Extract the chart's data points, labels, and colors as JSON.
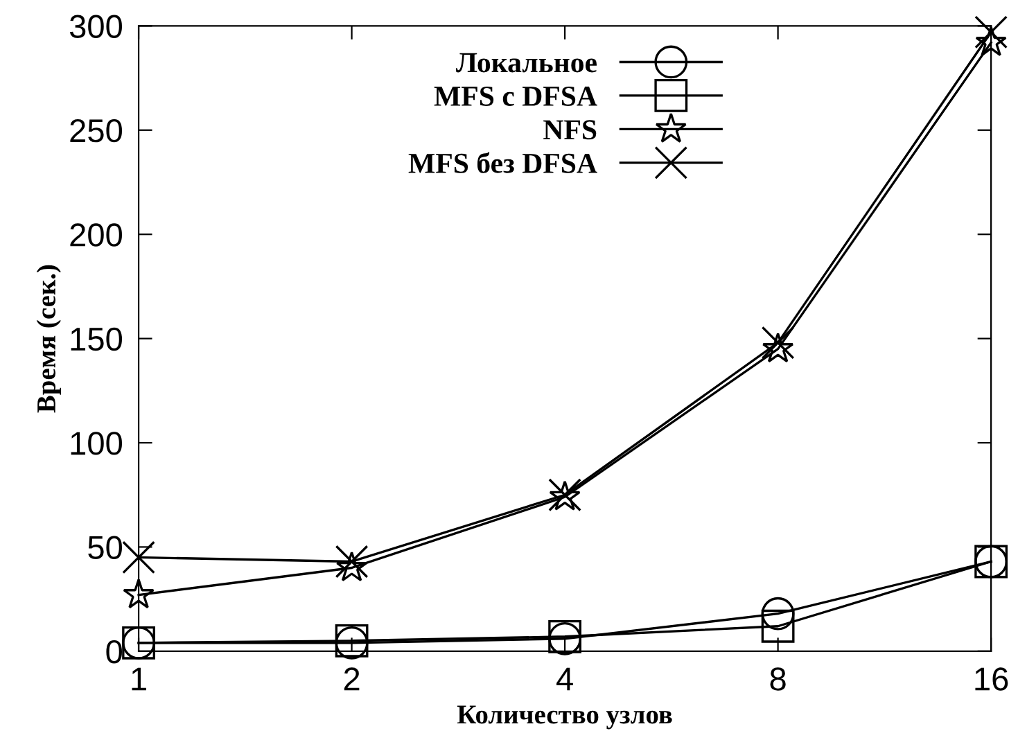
{
  "chart_data": {
    "type": "line",
    "xlabel": "Количество узлов",
    "ylabel": "Время (сек.)",
    "categories": [
      "1",
      "2",
      "4",
      "8",
      "16"
    ],
    "series": [
      {
        "name": "Локальное",
        "color": "#000000",
        "marker": "circle",
        "values": [
          4,
          4,
          6,
          18,
          43
        ]
      },
      {
        "name": "MFS с DFSA",
        "color": "#000000",
        "marker": "square",
        "values": [
          4,
          5,
          7,
          12,
          43
        ]
      },
      {
        "name": "NFS",
        "color": "#000000",
        "marker": "star",
        "values": [
          27,
          40,
          74,
          145,
          292
        ]
      },
      {
        "name": "MFS без DFSA",
        "color": "#000000",
        "marker": "cross",
        "values": [
          45,
          43,
          75,
          148,
          297
        ]
      }
    ],
    "ylim": [
      0,
      300
    ],
    "yticks": [
      0,
      50,
      100,
      150,
      200,
      250,
      300
    ],
    "grid": false,
    "legend": "top"
  }
}
